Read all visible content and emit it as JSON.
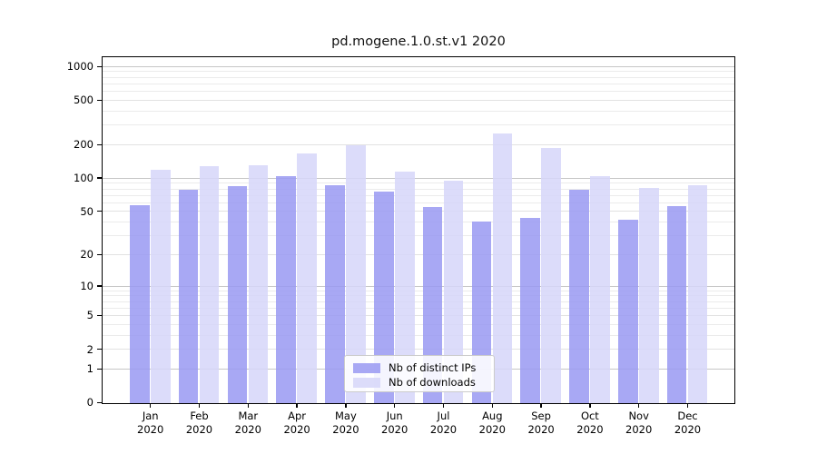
{
  "chart_data": {
    "type": "bar",
    "title": "pd.mogene.1.0.st.v1 2020",
    "categories": [
      "Jan",
      "Feb",
      "Mar",
      "Apr",
      "May",
      "Jun",
      "Jul",
      "Aug",
      "Sep",
      "Oct",
      "Nov",
      "Dec"
    ],
    "category_year": "2020",
    "series": [
      {
        "name": "Nb of distinct IPs",
        "color": "#9999f2",
        "values": [
          57,
          79,
          86,
          105,
          88,
          76,
          55,
          41,
          44,
          79,
          42,
          56
        ]
      },
      {
        "name": "Nb of downloads",
        "color": "#d6d6f9",
        "values": [
          120,
          130,
          132,
          168,
          199,
          115,
          96,
          254,
          187,
          106,
          82,
          87
        ]
      }
    ],
    "yscale": "log(1+x)",
    "ylim": [
      0,
      1200
    ],
    "ytick_values": [
      1000,
      500,
      200,
      100,
      50,
      20,
      10,
      5,
      2,
      1,
      0
    ],
    "ytick_labels": [
      "1000",
      "500",
      "200",
      "100",
      "50",
      "20",
      "10",
      "5",
      "2",
      "1",
      "0"
    ],
    "major_gridlines": [
      1,
      10,
      100,
      1000
    ],
    "mid_gridlines": [
      2,
      5,
      20,
      50,
      200,
      500
    ],
    "minor_gridlines": [
      3,
      4,
      6,
      7,
      8,
      9,
      30,
      40,
      60,
      70,
      80,
      90,
      300,
      400,
      600,
      700,
      800,
      900
    ],
    "grid": true,
    "legend_position": "lower center"
  },
  "colors": {
    "grid_major": "#c6c6c6",
    "grid_mid": "#e2e2e2",
    "grid_minor": "#ebebeb",
    "axis": "#000000",
    "background": "#ffffff"
  }
}
